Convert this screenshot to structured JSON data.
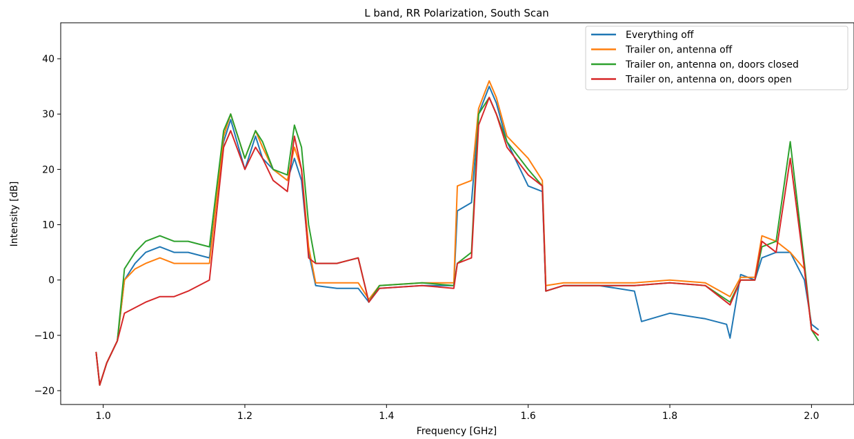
{
  "chart_data": {
    "type": "line",
    "title": "L band, RR Polarization, South Scan",
    "xlabel": "Frequency [GHz]",
    "ylabel": "Intensity [dB]",
    "xlim": [
      0.94,
      2.06
    ],
    "ylim": [
      -22.5,
      46.5
    ],
    "xticks": [
      1.0,
      1.2,
      1.4,
      1.6,
      1.8,
      2.0
    ],
    "xtick_labels": [
      "1.0",
      "1.2",
      "1.4",
      "1.6",
      "1.8",
      "2.0"
    ],
    "yticks": [
      -20,
      -10,
      0,
      10,
      20,
      30,
      40
    ],
    "ytick_labels": [
      "−20",
      "−10",
      "0",
      "10",
      "20",
      "30",
      "40"
    ],
    "grid": false,
    "legend_position": "top-right",
    "colors": {
      "everything_off": "#1f77b4",
      "trailer_antenna_off": "#ff7f0e",
      "doors_closed": "#2ca02c",
      "doors_open": "#d62728"
    },
    "series": [
      {
        "name": "Everything off",
        "color": "#1f77b4",
        "x": [
          0.99,
          0.995,
          1.005,
          1.02,
          1.03,
          1.045,
          1.06,
          1.08,
          1.1,
          1.12,
          1.15,
          1.17,
          1.18,
          1.2,
          1.215,
          1.225,
          1.24,
          1.26,
          1.27,
          1.28,
          1.29,
          1.3,
          1.33,
          1.36,
          1.375,
          1.39,
          1.45,
          1.495,
          1.5,
          1.52,
          1.53,
          1.545,
          1.555,
          1.57,
          1.6,
          1.62,
          1.625,
          1.65,
          1.7,
          1.75,
          1.76,
          1.8,
          1.85,
          1.88,
          1.885,
          1.9,
          1.92,
          1.93,
          1.95,
          1.97,
          1.99,
          2.0,
          2.01
        ],
        "y": [
          -13,
          -19,
          -15,
          -11,
          0,
          3,
          5,
          6,
          5,
          5,
          4,
          25,
          29,
          20,
          26,
          22,
          20,
          18,
          22,
          18,
          5,
          -1,
          -1.5,
          -1.5,
          -4,
          -1.5,
          -1,
          -1,
          12.5,
          14,
          30,
          35,
          32,
          25,
          17,
          16,
          -2,
          -1,
          -1,
          -2,
          -7.5,
          -6,
          -7,
          -8,
          -10.5,
          1,
          0,
          4,
          5,
          5,
          0,
          -8,
          -9
        ]
      },
      {
        "name": "Trailer on, antenna off",
        "color": "#ff7f0e",
        "x": [
          0.99,
          0.995,
          1.005,
          1.02,
          1.03,
          1.045,
          1.06,
          1.08,
          1.1,
          1.12,
          1.15,
          1.17,
          1.18,
          1.2,
          1.215,
          1.225,
          1.24,
          1.26,
          1.27,
          1.28,
          1.29,
          1.3,
          1.33,
          1.36,
          1.375,
          1.39,
          1.45,
          1.495,
          1.5,
          1.52,
          1.53,
          1.545,
          1.555,
          1.57,
          1.6,
          1.62,
          1.625,
          1.65,
          1.7,
          1.75,
          1.8,
          1.85,
          1.885,
          1.9,
          1.92,
          1.93,
          1.95,
          1.97,
          1.99,
          2.0,
          2.01
        ],
        "y": [
          -13,
          -19,
          -15,
          -11,
          0,
          2,
          3,
          4,
          3,
          3,
          3,
          26,
          30,
          22,
          27,
          24,
          20,
          18,
          24,
          20,
          6,
          -0.5,
          -0.5,
          -0.5,
          -3.5,
          -1,
          -0.5,
          -0.5,
          17,
          18,
          31,
          36,
          33,
          26,
          22,
          18,
          -1,
          -0.5,
          -0.5,
          -0.5,
          0,
          -0.5,
          -3,
          0.5,
          0.5,
          8,
          7,
          5,
          2,
          -9,
          -10
        ]
      },
      {
        "name": "Trailer on, antenna on, doors closed",
        "color": "#2ca02c",
        "x": [
          0.99,
          0.995,
          1.005,
          1.02,
          1.03,
          1.045,
          1.06,
          1.08,
          1.1,
          1.12,
          1.15,
          1.17,
          1.18,
          1.2,
          1.215,
          1.225,
          1.24,
          1.26,
          1.27,
          1.28,
          1.29,
          1.3,
          1.33,
          1.36,
          1.375,
          1.39,
          1.45,
          1.495,
          1.5,
          1.52,
          1.53,
          1.545,
          1.555,
          1.57,
          1.6,
          1.62,
          1.625,
          1.65,
          1.7,
          1.75,
          1.8,
          1.85,
          1.885,
          1.9,
          1.92,
          1.93,
          1.95,
          1.97,
          1.99,
          2.0,
          2.01
        ],
        "y": [
          -13,
          -19,
          -15,
          -11,
          2,
          5,
          7,
          8,
          7,
          7,
          6,
          27,
          30,
          22,
          27,
          25,
          20,
          19,
          28,
          24,
          10,
          3,
          3,
          4,
          -4,
          -1,
          -0.5,
          -1,
          3,
          5,
          30,
          33,
          30,
          25,
          20,
          17,
          -2,
          -1,
          -1,
          -1,
          -0.5,
          -1,
          -4,
          0,
          0,
          6,
          7,
          25,
          3,
          -9,
          -11
        ]
      },
      {
        "name": "Trailer on, antenna on, doors open",
        "color": "#d62728",
        "x": [
          0.99,
          0.995,
          1.005,
          1.02,
          1.03,
          1.045,
          1.06,
          1.08,
          1.1,
          1.12,
          1.15,
          1.17,
          1.18,
          1.2,
          1.215,
          1.225,
          1.24,
          1.26,
          1.27,
          1.28,
          1.29,
          1.3,
          1.33,
          1.36,
          1.375,
          1.39,
          1.45,
          1.495,
          1.5,
          1.52,
          1.53,
          1.545,
          1.555,
          1.57,
          1.6,
          1.62,
          1.625,
          1.65,
          1.7,
          1.75,
          1.8,
          1.85,
          1.885,
          1.9,
          1.92,
          1.93,
          1.95,
          1.97,
          1.99,
          2.0,
          2.01
        ],
        "y": [
          -13,
          -19,
          -15,
          -11,
          -6,
          -5,
          -4,
          -3,
          -3,
          -2,
          0,
          24,
          27,
          20,
          24,
          22,
          18,
          16,
          26,
          20,
          4,
          3,
          3,
          4,
          -4,
          -1.5,
          -1,
          -1.5,
          3,
          4,
          28,
          33,
          30,
          24,
          19,
          17,
          -2,
          -1,
          -1,
          -1,
          -0.5,
          -1,
          -4.5,
          0,
          0,
          7,
          5,
          22,
          2,
          -9,
          -10
        ]
      }
    ]
  }
}
